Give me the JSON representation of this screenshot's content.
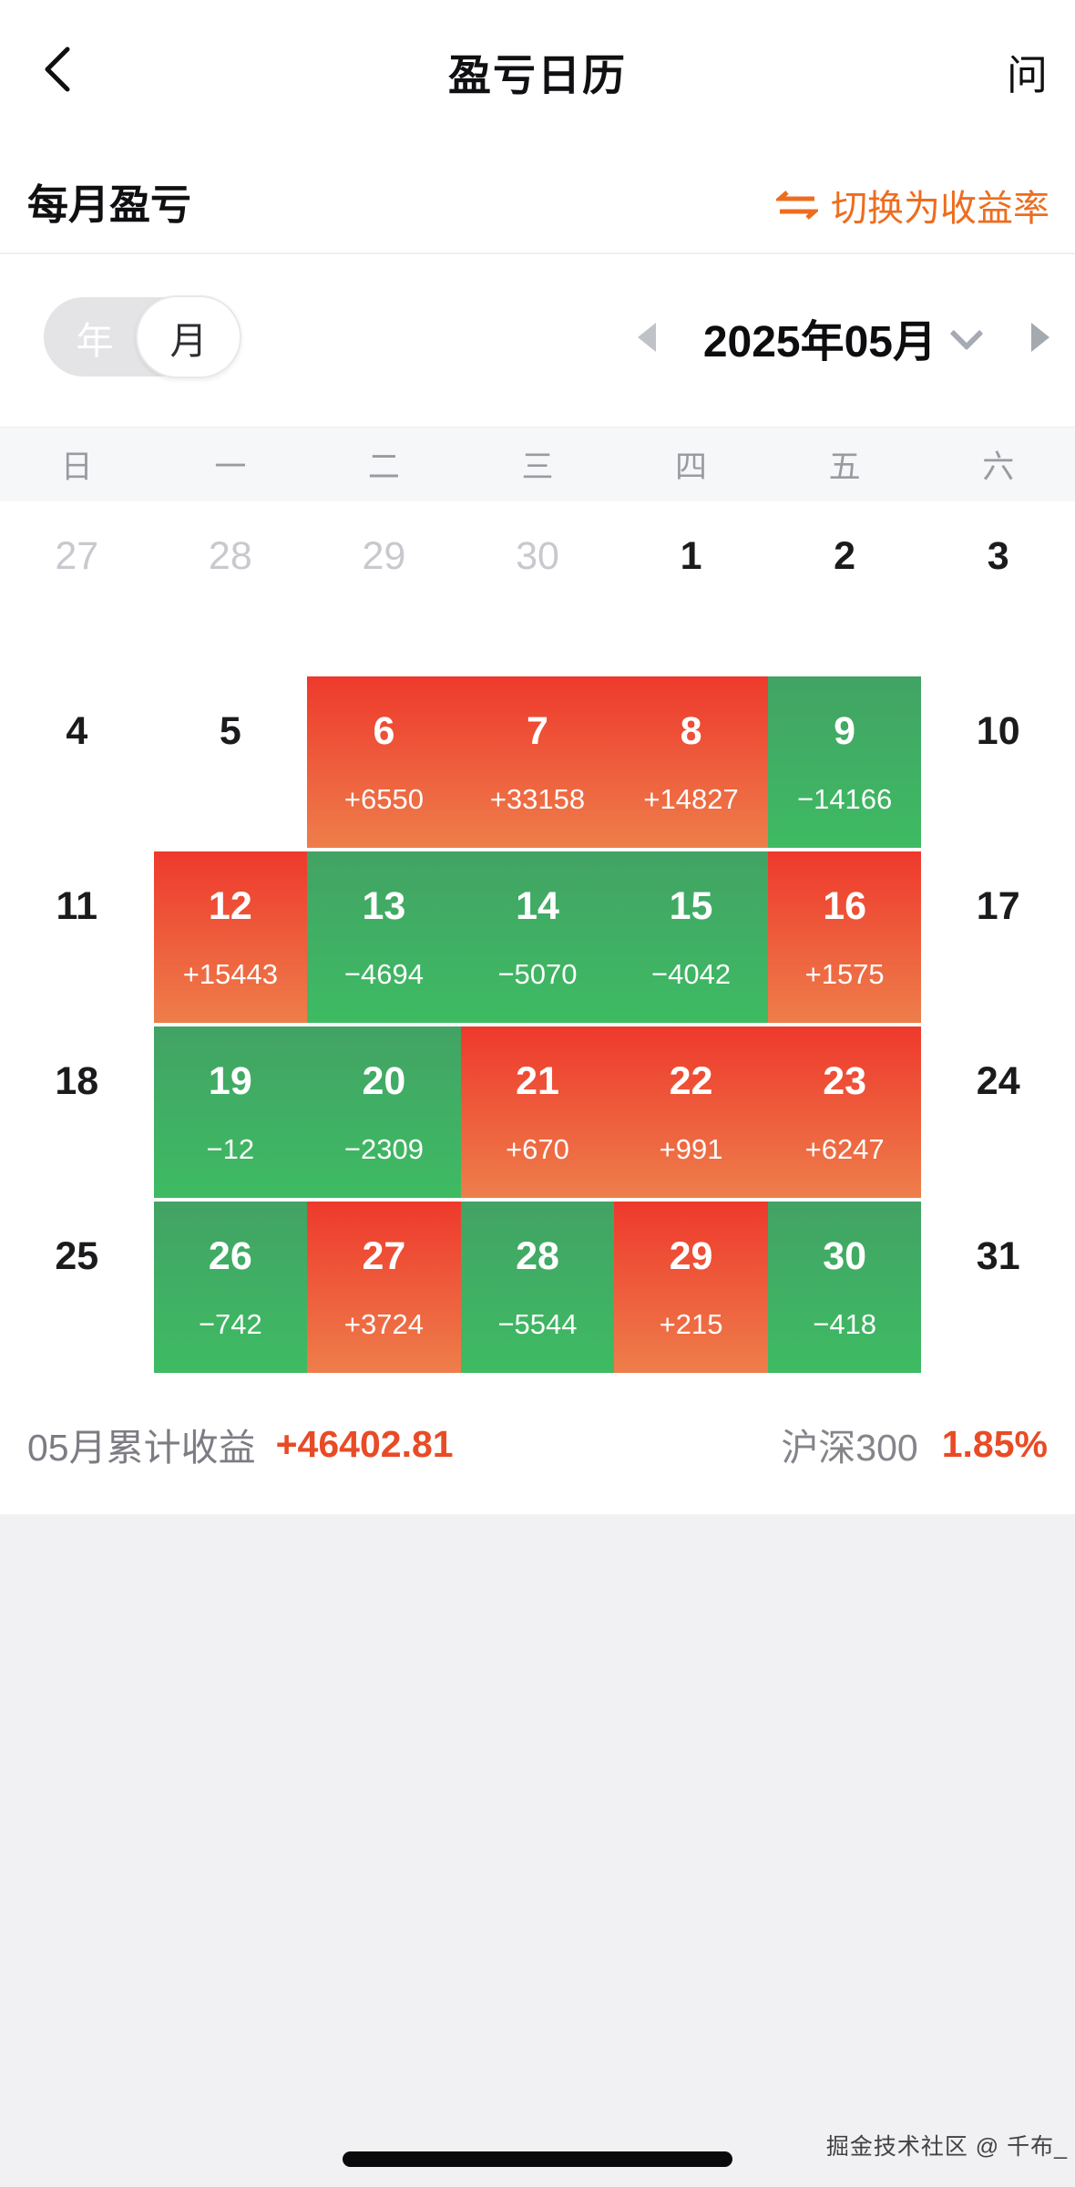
{
  "header": {
    "title": "盈亏日历",
    "right_action": "问"
  },
  "subheader": {
    "label": "每月盈亏",
    "switch_rate_label": "切换为收益率"
  },
  "controls": {
    "year_label": "年",
    "month_label": "月",
    "selected_mode": "月",
    "period": "2025年05月"
  },
  "weekdays": [
    "日",
    "一",
    "二",
    "三",
    "四",
    "五",
    "六"
  ],
  "calendar": {
    "weeks": [
      {
        "days": [
          {
            "day": "27",
            "muted": true
          },
          {
            "day": "28",
            "muted": true
          },
          {
            "day": "29",
            "muted": true
          },
          {
            "day": "30",
            "muted": true
          },
          {
            "day": "1"
          },
          {
            "day": "2"
          },
          {
            "day": "3"
          }
        ]
      },
      {
        "days": [
          {
            "day": "4"
          },
          {
            "day": "5"
          },
          {
            "day": "6",
            "value": "+6550",
            "type": "profit"
          },
          {
            "day": "7",
            "value": "+33158",
            "type": "profit"
          },
          {
            "day": "8",
            "value": "+14827",
            "type": "profit"
          },
          {
            "day": "9",
            "value": "−14166",
            "type": "loss"
          },
          {
            "day": "10"
          }
        ]
      },
      {
        "days": [
          {
            "day": "11"
          },
          {
            "day": "12",
            "value": "+15443",
            "type": "profit"
          },
          {
            "day": "13",
            "value": "−4694",
            "type": "loss"
          },
          {
            "day": "14",
            "value": "−5070",
            "type": "loss"
          },
          {
            "day": "15",
            "value": "−4042",
            "type": "loss"
          },
          {
            "day": "16",
            "value": "+1575",
            "type": "profit"
          },
          {
            "day": "17"
          }
        ]
      },
      {
        "days": [
          {
            "day": "18"
          },
          {
            "day": "19",
            "value": "−12",
            "type": "loss"
          },
          {
            "day": "20",
            "value": "−2309",
            "type": "loss"
          },
          {
            "day": "21",
            "value": "+670",
            "type": "profit"
          },
          {
            "day": "22",
            "value": "+991",
            "type": "profit"
          },
          {
            "day": "23",
            "value": "+6247",
            "type": "profit"
          },
          {
            "day": "24"
          }
        ]
      },
      {
        "days": [
          {
            "day": "25"
          },
          {
            "day": "26",
            "value": "−742",
            "type": "loss"
          },
          {
            "day": "27",
            "value": "+3724",
            "type": "profit"
          },
          {
            "day": "28",
            "value": "−5544",
            "type": "loss"
          },
          {
            "day": "29",
            "value": "+215",
            "type": "profit"
          },
          {
            "day": "30",
            "value": "−418",
            "type": "loss"
          },
          {
            "day": "31"
          }
        ]
      }
    ]
  },
  "summary": {
    "label": "05月累计收益",
    "value": "+46402.81",
    "index_name": "沪深300",
    "index_value": "1.85%"
  },
  "watermark": "掘金技术社区 @ 千布_",
  "colors": {
    "accent": "#ED6D1F",
    "number_red": "#E84B26",
    "profit_top": "#EE392C",
    "profit_bottom": "#EE7E4B",
    "loss_top": "#42A364",
    "loss_bottom": "#3EBB63"
  }
}
